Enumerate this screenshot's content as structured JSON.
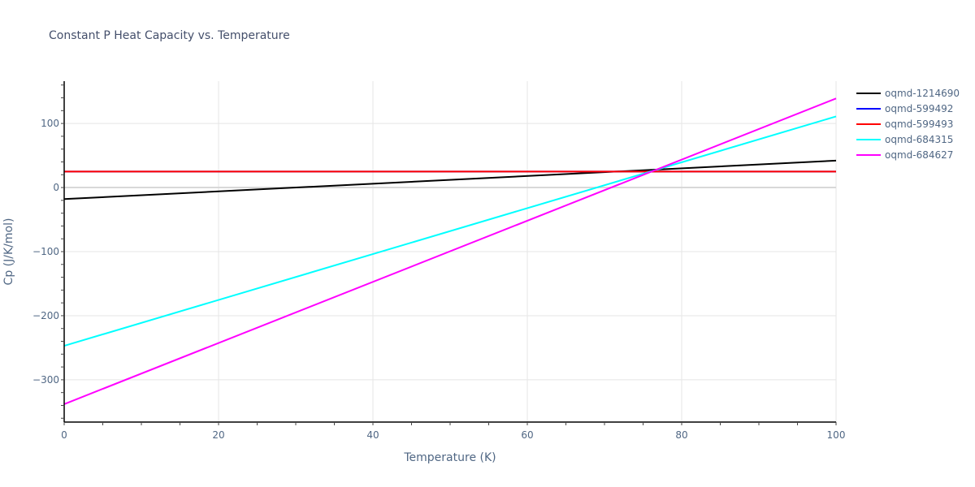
{
  "title": "Constant P Heat Capacity vs. Temperature",
  "chart_data": {
    "type": "line",
    "title": "Constant P Heat Capacity vs. Temperature",
    "xlabel": "Temperature (K)",
    "ylabel": "Cp (J/K/mol)",
    "xlim": [
      0,
      100
    ],
    "ylim": [
      -366,
      166
    ],
    "x_ticks": [
      0,
      20,
      40,
      60,
      80,
      100
    ],
    "y_ticks": [
      -300,
      -200,
      -100,
      0,
      100
    ],
    "x_minor_step": 5,
    "y_minor_step": 20,
    "grid": true,
    "legend_position": "right-top",
    "series": [
      {
        "name": "oqmd-1214690",
        "color": "#000000",
        "x": [
          0,
          100
        ],
        "values": [
          -18,
          42
        ]
      },
      {
        "name": "oqmd-599492",
        "color": "#0000ff",
        "x": [
          0,
          100
        ],
        "values": [
          25,
          25
        ]
      },
      {
        "name": "oqmd-599493",
        "color": "#ff0000",
        "x": [
          0,
          100
        ],
        "values": [
          25,
          25
        ]
      },
      {
        "name": "oqmd-684315",
        "color": "#00ffff",
        "x": [
          0,
          100
        ],
        "values": [
          -247,
          111
        ]
      },
      {
        "name": "oqmd-684627",
        "color": "#ff00ff",
        "x": [
          0,
          100
        ],
        "values": [
          -338,
          139
        ]
      }
    ]
  }
}
